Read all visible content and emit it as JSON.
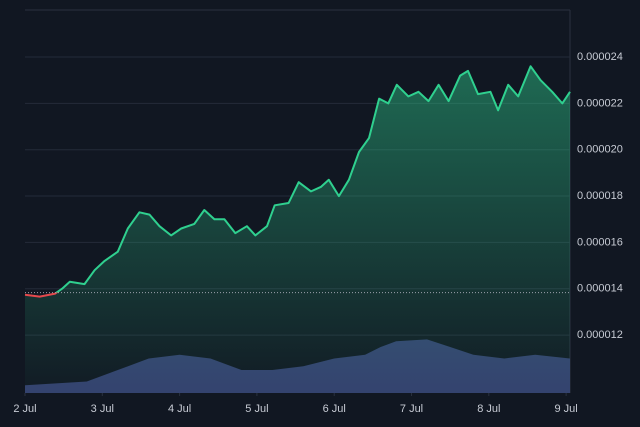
{
  "chart_data": {
    "type": "line",
    "x": [
      2.0,
      2.19,
      2.39,
      2.48,
      2.58,
      2.77,
      2.9,
      3.03,
      3.2,
      3.33,
      3.48,
      3.61,
      3.74,
      3.89,
      4.02,
      4.19,
      4.32,
      4.45,
      4.58,
      4.72,
      4.87,
      4.98,
      5.13,
      5.23,
      5.41,
      5.54,
      5.7,
      5.83,
      5.93,
      6.06,
      6.19,
      6.32,
      6.45,
      6.58,
      6.7,
      6.81,
      6.96,
      7.09,
      7.22,
      7.35,
      7.48,
      7.63,
      7.73,
      7.86,
      8.02,
      8.12,
      8.25,
      8.38,
      8.54,
      8.67,
      8.82,
      8.95,
      9.05
    ],
    "series": [
      {
        "color": "#2fd08f",
        "down_color": "#e5494d",
        "values": [
          1.374e-05,
          1.366e-05,
          1.379e-05,
          1.4e-05,
          1.43e-05,
          1.42e-05,
          1.48e-05,
          1.52e-05,
          1.56e-05,
          1.66e-05,
          1.73e-05,
          1.72e-05,
          1.67e-05,
          1.63e-05,
          1.66e-05,
          1.68e-05,
          1.74e-05,
          1.7e-05,
          1.7e-05,
          1.64e-05,
          1.67e-05,
          1.63e-05,
          1.67e-05,
          1.76e-05,
          1.77e-05,
          1.86e-05,
          1.82e-05,
          1.84e-05,
          1.87e-05,
          1.8e-05,
          1.87e-05,
          1.99e-05,
          2.05e-05,
          2.22e-05,
          2.2e-05,
          2.28e-05,
          2.23e-05,
          2.25e-05,
          2.21e-05,
          2.28e-05,
          2.21e-05,
          2.32e-05,
          2.34e-05,
          2.24e-05,
          2.25e-05,
          2.17e-05,
          2.28e-05,
          2.23e-05,
          2.36e-05,
          2.3e-05,
          2.25e-05,
          2.2e-05,
          2.25e-05
        ]
      }
    ],
    "baseline": 1.383e-05,
    "volume": {
      "color": "#34406e",
      "x": [
        2.0,
        2.8,
        3.2,
        3.6,
        4.0,
        4.4,
        4.8,
        5.2,
        5.6,
        6.0,
        6.4,
        6.6,
        6.8,
        7.2,
        7.5,
        7.8,
        8.2,
        8.6,
        9.05
      ],
      "values": [
        2,
        3,
        6,
        9,
        10,
        9,
        6,
        6,
        7,
        9,
        10,
        12,
        13.5,
        14,
        12,
        10,
        9,
        10,
        9
      ],
      "y2lim": [
        0,
        100
      ]
    },
    "xlim": [
      2,
      9.05
    ],
    "xticks": [
      {
        "value": 2,
        "label": "2 Jul"
      },
      {
        "value": 3,
        "label": "3 Jul"
      },
      {
        "value": 4,
        "label": "4 Jul"
      },
      {
        "value": 5,
        "label": "5 Jul"
      },
      {
        "value": 6,
        "label": "6 Jul"
      },
      {
        "value": 7,
        "label": "7 Jul"
      },
      {
        "value": 8,
        "label": "8 Jul"
      },
      {
        "value": 9,
        "label": "9 Jul"
      }
    ],
    "ylim": [
      9.5e-06,
      2.603e-05
    ],
    "yticks": [
      {
        "value": 1.2e-05,
        "label": "0.000012"
      },
      {
        "value": 1.4e-05,
        "label": "0.000014"
      },
      {
        "value": 1.6e-05,
        "label": "0.000016"
      },
      {
        "value": 1.8e-05,
        "label": "0.000018"
      },
      {
        "value": 2e-05,
        "label": "0.000020"
      },
      {
        "value": 2.2e-05,
        "label": "0.000022"
      },
      {
        "value": 2.4e-05,
        "label": "0.000024"
      }
    ],
    "grid": true
  }
}
